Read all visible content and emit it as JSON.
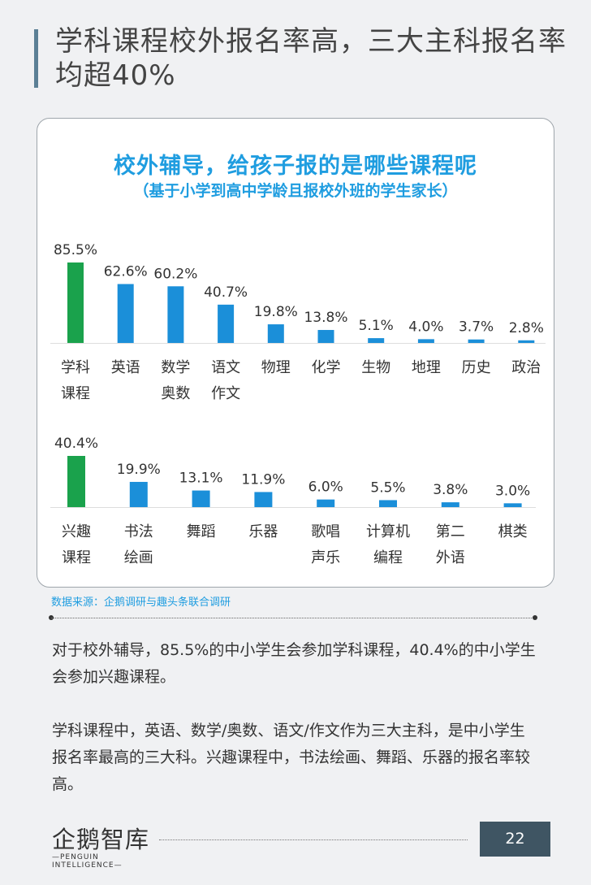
{
  "page": {
    "title": "学科课程校外报名率高，三大主科报名率均超40%",
    "source": "数据来源：企鹅调研与趣头条联合调研",
    "paragraph1": "对于校外辅导，85.5%的中小学生会参加学科课程，40.4%的中小学生会参加兴趣课程。",
    "paragraph2": "学科课程中，英语、数学/奥数、语文/作文作为三大主科，是中小学生报名率最高的三大科。兴趣课程中，书法绘画、舞蹈、乐器的报名率较高。",
    "logo_main": "企鹅智库",
    "logo_sub": "—PENGUIN INTELLIGENCE—",
    "page_number": "22"
  },
  "chart_data": [
    {
      "type": "bar",
      "title": "校外辅导，给孩子报的是哪些课程呢",
      "subtitle": "（基于小学到高中学龄且报校外班的学生家长）",
      "categories": [
        "学科\n课程",
        "英语",
        "数学\n奥数",
        "语文\n作文",
        "物理",
        "化学",
        "生物",
        "地理",
        "历史",
        "政治"
      ],
      "values": [
        85.5,
        62.6,
        60.2,
        40.7,
        19.8,
        13.8,
        5.1,
        4.0,
        3.7,
        2.8
      ],
      "value_labels": [
        "85.5%",
        "62.6%",
        "60.2%",
        "40.7%",
        "19.8%",
        "13.8%",
        "5.1%",
        "4.0%",
        "3.7%",
        "2.8%"
      ],
      "colors": [
        "#1aa24c",
        "#1b8fd9",
        "#1b8fd9",
        "#1b8fd9",
        "#1b8fd9",
        "#1b8fd9",
        "#1b8fd9",
        "#1b8fd9",
        "#1b8fd9",
        "#1b8fd9"
      ]
    },
    {
      "type": "bar",
      "categories": [
        "兴趣\n课程",
        "书法\n绘画",
        "舞蹈",
        "乐器",
        "歌唱\n声乐",
        "计算机\n编程",
        "第二\n外语",
        "棋类"
      ],
      "values": [
        40.4,
        19.9,
        13.1,
        11.9,
        6.0,
        5.5,
        3.8,
        3.0
      ],
      "value_labels": [
        "40.4%",
        "19.9%",
        "13.1%",
        "11.9%",
        "6.0%",
        "5.5%",
        "3.8%",
        "3.0%"
      ],
      "colors": [
        "#1aa24c",
        "#1b8fd9",
        "#1b8fd9",
        "#1b8fd9",
        "#1b8fd9",
        "#1b8fd9",
        "#1b8fd9",
        "#1b8fd9"
      ]
    }
  ]
}
